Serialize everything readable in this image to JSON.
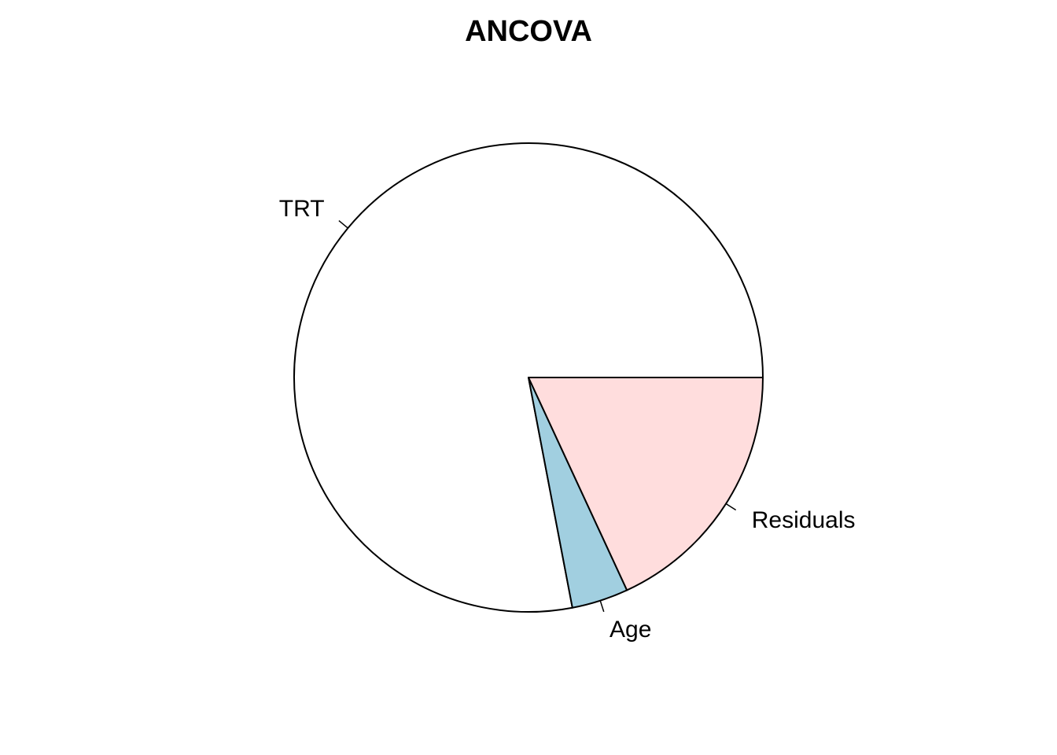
{
  "chart_data": {
    "type": "pie",
    "title": "ANCOVA",
    "start_angle_deg": 0,
    "direction": "counterclockwise",
    "slices": [
      {
        "label": "TRT",
        "value": 78.0,
        "color": "#ffffff"
      },
      {
        "label": "Age",
        "value": 3.9,
        "color": "#a1cfe0"
      },
      {
        "label": "Residuals",
        "value": 18.1,
        "color": "#ffdddd"
      }
    ]
  }
}
